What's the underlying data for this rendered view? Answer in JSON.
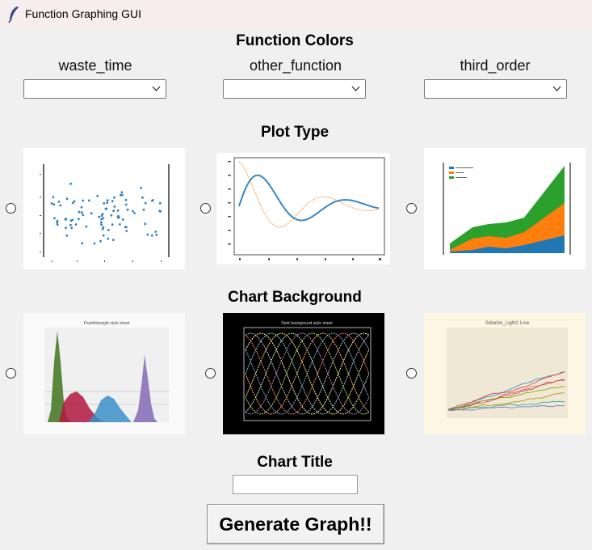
{
  "window": {
    "title": "Function Graphing GUI"
  },
  "colors_section": {
    "heading": "Function Colors",
    "dropdowns": [
      {
        "label": "waste_time",
        "value": ""
      },
      {
        "label": "other_function",
        "value": ""
      },
      {
        "label": "third_order",
        "value": ""
      }
    ]
  },
  "plot_type_section": {
    "heading": "Plot Type"
  },
  "background_section": {
    "heading": "Chart Background",
    "thumb_titles": [
      "Fivethirtyeight style sheet",
      "Dark background style sheet",
      "Solarize_Light2 Line"
    ]
  },
  "title_section": {
    "heading": "Chart Title",
    "value": ""
  },
  "generate_button": {
    "label": "Generate Graph!!"
  }
}
